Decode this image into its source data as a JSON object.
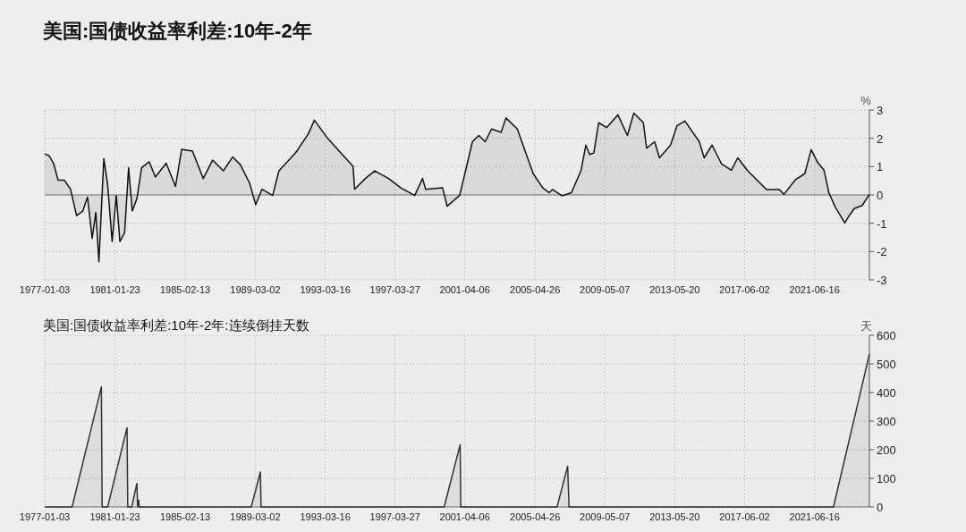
{
  "chart_data": [
    {
      "type": "area",
      "title": "美国:国债收益率利差:10年-2年",
      "ylabel": "%",
      "xlim": [
        "1977-01-03",
        "2024-08-15"
      ],
      "ylim": [
        -3,
        3
      ],
      "yticks": [
        -3,
        -2,
        -1,
        0,
        1,
        2,
        3
      ],
      "xticks": [
        "1977-01-03",
        "1981-01-23",
        "1985-02-13",
        "1989-03-02",
        "1993-03-16",
        "1997-03-27",
        "2001-04-06",
        "2005-04-26",
        "2009-05-07",
        "2013-05-20",
        "2017-06-02",
        "2021-06-16"
      ],
      "grid": true,
      "series": [
        {
          "color": "#111111",
          "x": [
            "1977-01-03",
            "1977-04-01",
            "1977-07-08",
            "1977-10-12",
            "1978-02-20",
            "1978-07-01",
            "1978-11-06",
            "1979-03-17",
            "1979-06-25",
            "1979-10-01",
            "1979-12-16",
            "1980-02-20",
            "1980-06-02",
            "1980-08-22",
            "1980-11-25",
            "1981-02-20",
            "1981-05-08",
            "1981-08-15",
            "1981-11-07",
            "1982-01-23",
            "1982-05-01",
            "1982-08-08",
            "1983-01-15",
            "1983-05-26",
            "1984-01-08",
            "1984-07-23",
            "1984-11-29",
            "1985-07-16",
            "1986-02-28",
            "1986-09-13",
            "1987-04-28",
            "1987-11-10",
            "1988-04-20",
            "1988-11-03",
            "1989-03-10",
            "1989-07-20",
            "1990-03-04",
            "1990-07-13",
            "1991-07-06",
            "1992-03-22",
            "1992-07-31",
            "1993-04-16",
            "1994-01-04",
            "1994-10-23",
            "1994-11-25",
            "1995-07-09",
            "1996-01-23",
            "1996-11-11",
            "1997-07-27",
            "1998-05-16",
            "1998-10-27",
            "1999-01-01",
            "1999-12-25",
            "2000-03-28",
            "2000-12-17",
            "2001-04-24",
            "2001-09-13",
            "2002-01-26",
            "2002-06-10",
            "2002-10-23",
            "2003-05-11",
            "2003-08-22",
            "2004-04-17",
            "2004-10-01",
            "2005-03-18",
            "2005-10-05",
            "2006-02-17",
            "2006-04-27",
            "2006-11-14",
            "2007-06-03",
            "2007-12-24",
            "2008-04-01",
            "2008-06-19",
            "2008-09-17",
            "2008-12-28",
            "2009-06-13",
            "2010-02-06",
            "2010-08-26",
            "2011-01-08",
            "2011-07-28",
            "2011-10-05",
            "2012-03-22",
            "2012-07-02",
            "2013-02-21",
            "2013-07-06",
            "2013-12-20",
            "2014-10-20",
            "2015-01-30",
            "2015-07-16",
            "2016-02-02",
            "2016-08-26",
            "2017-01-08",
            "2017-07-28",
            "2018-02-14",
            "2018-09-06",
            "2019-06-03",
            "2019-09-09",
            "2020-05-04",
            "2020-11-21",
            "2021-04-05",
            "2021-08-19",
            "2022-01-01",
            "2022-04-13",
            "2022-08-26",
            "2023-03-15",
            "2023-06-25",
            "2023-10-01",
            "2024-03-17",
            "2024-08-15"
          ],
          "values": [
            1.45,
            1.39,
            1.12,
            0.52,
            0.52,
            0.2,
            -0.73,
            -0.57,
            -0.08,
            -1.54,
            -0.62,
            -2.36,
            1.28,
            0.36,
            -1.65,
            -0.02,
            -1.65,
            -1.33,
            0.96,
            -0.57,
            -0.13,
            0.96,
            1.17,
            0.63,
            1.12,
            0.3,
            1.61,
            1.55,
            0.58,
            1.23,
            0.85,
            1.34,
            1.07,
            0.41,
            -0.35,
            0.2,
            -0.02,
            0.85,
            1.5,
            2.15,
            2.64,
            2.04,
            1.55,
            1.01,
            0.2,
            0.58,
            0.85,
            0.58,
            0.25,
            -0.02,
            0.58,
            0.2,
            0.25,
            -0.4,
            -0.02,
            0.87,
            1.88,
            2.1,
            1.88,
            2.33,
            2.21,
            2.72,
            2.33,
            1.54,
            0.75,
            0.25,
            0.08,
            0.19,
            -0.03,
            0.08,
            0.87,
            1.76,
            1.43,
            1.48,
            2.55,
            2.38,
            2.83,
            2.1,
            2.89,
            2.55,
            1.65,
            1.88,
            1.31,
            1.76,
            2.44,
            2.61,
            1.88,
            1.31,
            1.76,
            1.09,
            0.87,
            1.31,
            0.87,
            0.53,
            0.19,
            0.19,
            0.02,
            0.53,
            0.75,
            1.6,
            1.15,
            0.87,
            0.08,
            -0.43,
            -0.99,
            -0.71,
            -0.48,
            -0.37,
            0.02
          ]
        }
      ]
    },
    {
      "type": "area",
      "title": "美国:国债收益率利差:10年-2年:连续倒挂天数",
      "ylabel": "天",
      "xlim": [
        "1977-01-03",
        "2024-08-15"
      ],
      "ylim": [
        0,
        600
      ],
      "yticks": [
        0,
        100,
        200,
        300,
        400,
        500,
        600
      ],
      "xticks": [
        "1977-01-03",
        "1981-01-23",
        "1985-02-13",
        "1989-03-02",
        "1993-03-16",
        "1997-03-27",
        "2001-04-06",
        "2005-04-26",
        "2009-05-07",
        "2013-05-20",
        "2017-06-02",
        "2021-06-16"
      ],
      "grid": true,
      "series": [
        {
          "color": "#333333",
          "x": [
            "1977-01-03",
            "1978-08-03",
            "1980-04-12",
            "1980-04-28",
            "1980-08-22",
            "1981-10-05",
            "1981-10-20",
            "1982-01-11",
            "1982-05-01",
            "1982-05-15",
            "1982-06-10",
            "1982-06-20",
            "1988-12-05",
            "1989-06-17",
            "1989-07-01",
            "2000-01-26",
            "2000-12-28",
            "2001-01-11",
            "2006-08-03",
            "2007-03-15",
            "2007-04-13",
            "2022-07-19",
            "2024-08-15"
          ],
          "values": [
            0,
            0,
            420,
            0,
            0,
            277,
            0,
            0,
            82,
            0,
            24,
            0,
            0,
            122,
            0,
            0,
            217,
            0,
            0,
            142,
            0,
            0,
            534
          ]
        }
      ]
    }
  ]
}
